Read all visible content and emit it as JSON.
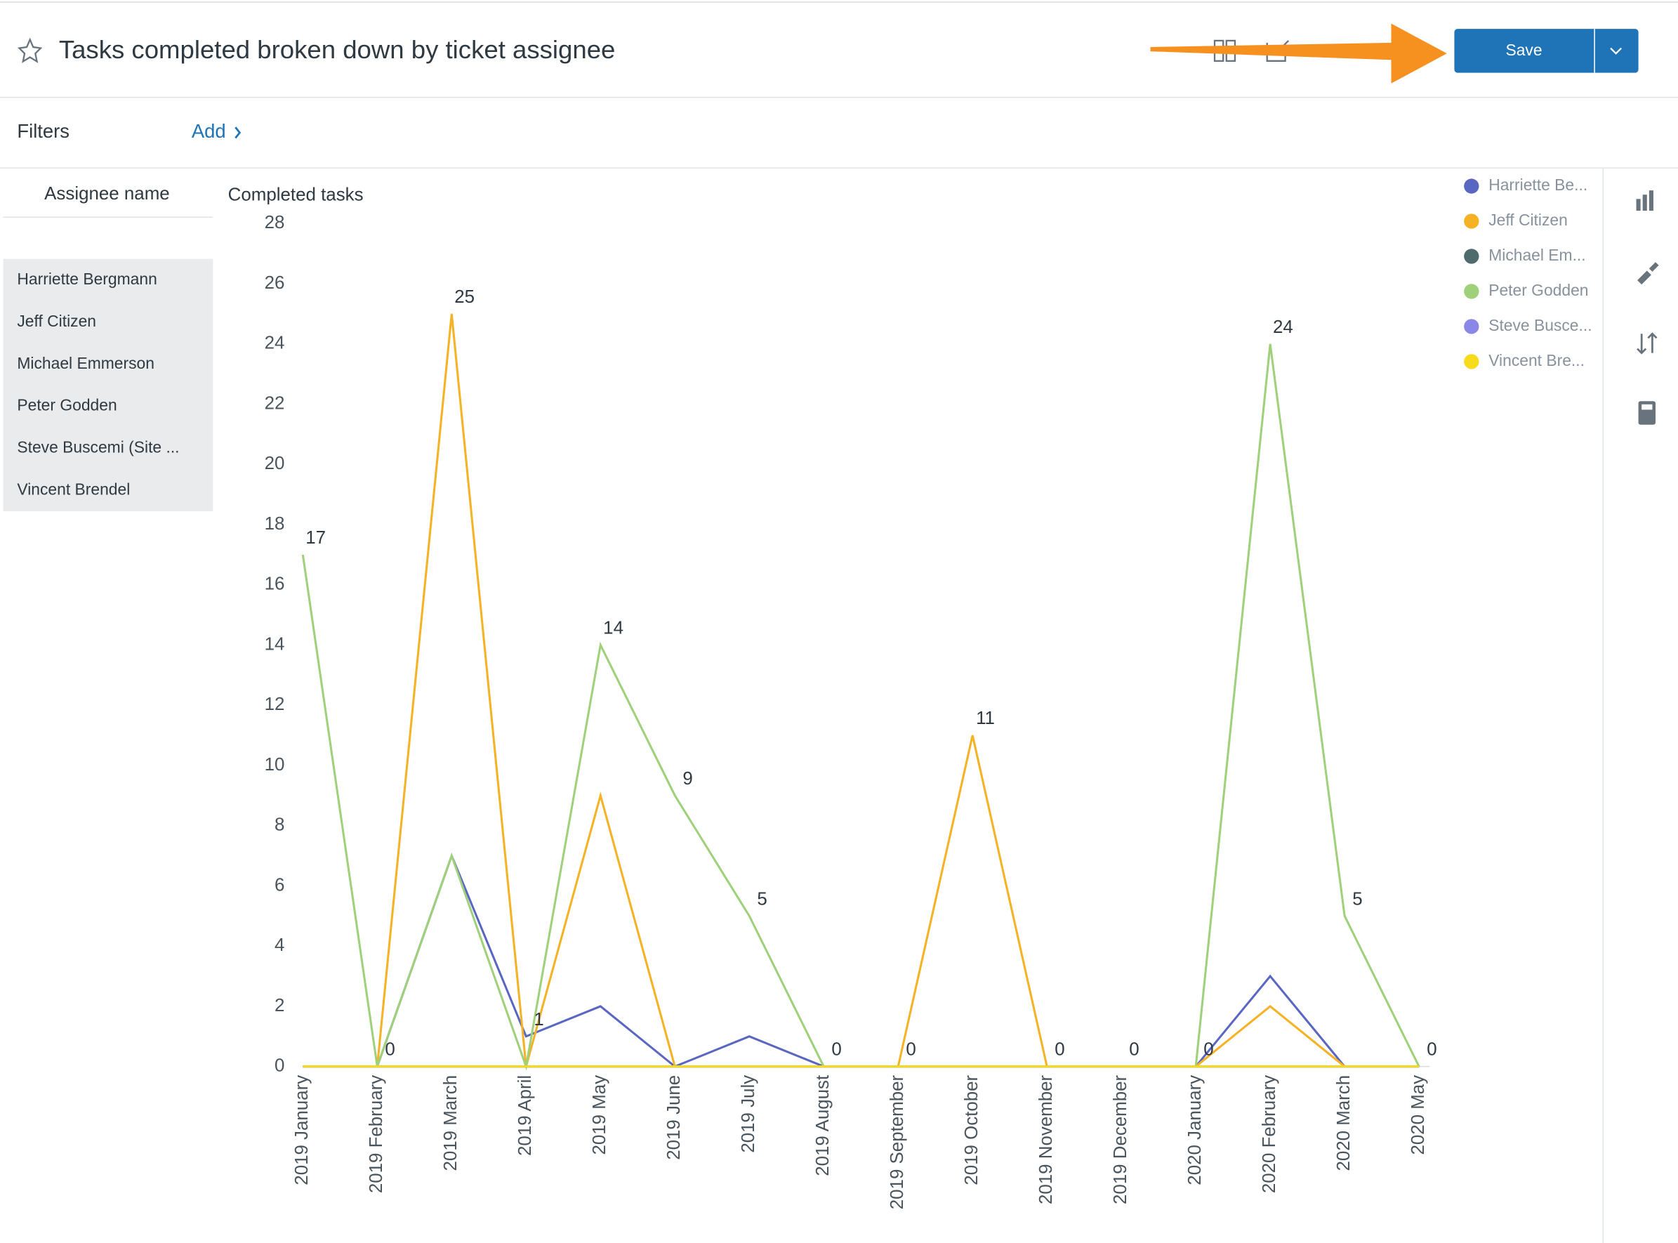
{
  "header": {
    "title": "Tasks completed broken down by ticket assignee",
    "save": "Save"
  },
  "filters": {
    "label": "Filters",
    "add": "Add"
  },
  "assignee_table": {
    "header": "Assignee name",
    "rows": [
      "Harriette Bergmann",
      "Jeff Citizen",
      "Michael Emmerson",
      "Peter Godden",
      "Steve Buscemi (Site ...",
      "Vincent Brendel"
    ]
  },
  "chart_data": {
    "type": "line",
    "y_label": "Completed tasks",
    "categories": [
      "2019 January",
      "2019 February",
      "2019 March",
      "2019 April",
      "2019 May",
      "2019 June",
      "2019 July",
      "2019 August",
      "2019 September",
      "2019 October",
      "2019 November",
      "2019 December",
      "2020 January",
      "2020 February",
      "2020 March",
      "2020 May"
    ],
    "ylim": [
      0,
      28
    ],
    "yticks": [
      0,
      2,
      4,
      6,
      8,
      10,
      12,
      14,
      16,
      18,
      20,
      22,
      24,
      26,
      28
    ],
    "series": [
      {
        "name": "Harriette Be...",
        "color": "#5a67c2",
        "values": [
          null,
          0,
          7,
          1,
          2,
          0,
          1,
          0,
          null,
          null,
          null,
          null,
          0,
          3,
          0,
          null
        ]
      },
      {
        "name": "Jeff Citizen",
        "color": "#f5b224",
        "values": [
          null,
          0,
          25,
          0,
          9,
          0,
          null,
          null,
          0,
          11,
          0,
          null,
          0,
          2,
          0,
          null
        ]
      },
      {
        "name": "Michael Em...",
        "color": "#4e6b6e",
        "values": [
          0,
          0,
          0,
          0,
          0,
          0,
          0,
          0,
          0,
          0,
          0,
          0,
          0,
          0,
          0,
          0
        ]
      },
      {
        "name": "Peter Godden",
        "color": "#9fd07a",
        "values": [
          17,
          0,
          7,
          0,
          14,
          9,
          5,
          0,
          null,
          null,
          null,
          null,
          0,
          24,
          5,
          0
        ]
      },
      {
        "name": "Steve Busce...",
        "color": "#8a87e6",
        "values": [
          0,
          0,
          0,
          0,
          0,
          0,
          0,
          0,
          0,
          0,
          0,
          0,
          0,
          0,
          0,
          0
        ]
      },
      {
        "name": "Vincent Bre...",
        "color": "#f7dc1e",
        "values": [
          0,
          0,
          0,
          0,
          0,
          0,
          0,
          0,
          0,
          0,
          0,
          0,
          0,
          0,
          0,
          0
        ]
      }
    ]
  }
}
